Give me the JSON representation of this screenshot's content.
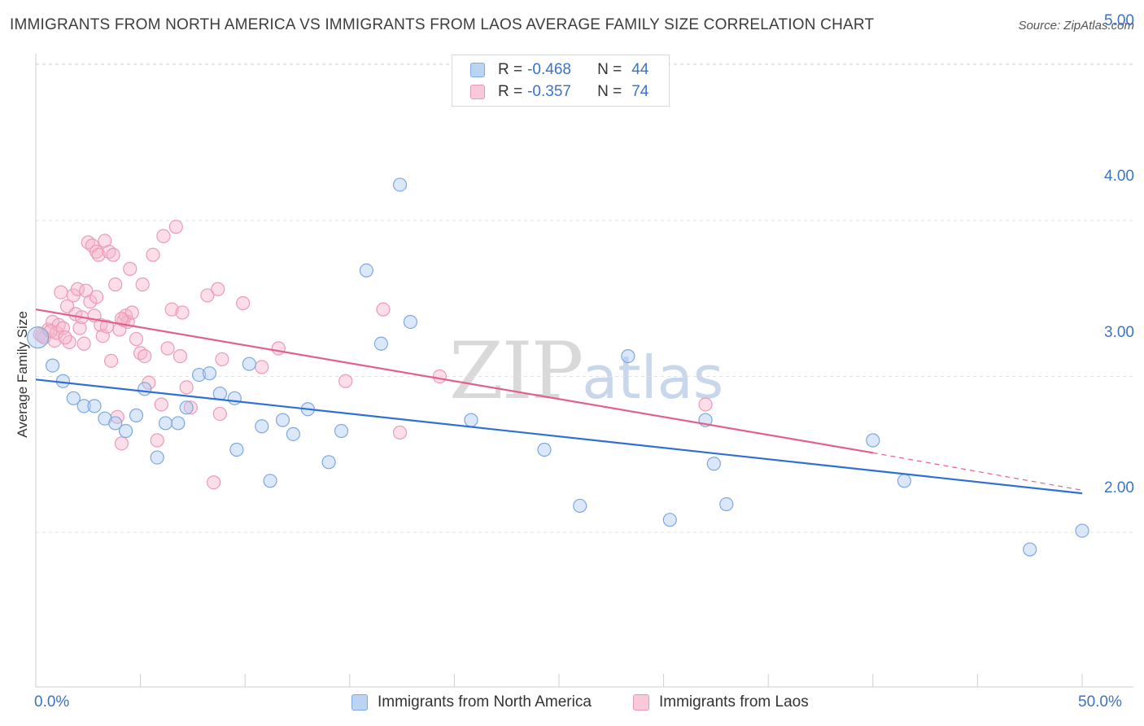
{
  "title": "IMMIGRANTS FROM NORTH AMERICA VS IMMIGRANTS FROM LAOS AVERAGE FAMILY SIZE CORRELATION CHART",
  "source": "Source: ZipAtlas.com",
  "watermark": {
    "zip": "ZIP",
    "atlas": "atlas"
  },
  "legend": {
    "rows": [
      {
        "r_label": "R =",
        "r_value": "-0.468",
        "n_label": "N =",
        "n_value": "44"
      },
      {
        "r_label": "R =",
        "r_value": "-0.357",
        "n_label": "N =",
        "n_value": "74"
      }
    ]
  },
  "chart_data": {
    "type": "scatter",
    "xlabel": "",
    "ylabel": "Average Family Size",
    "x_tick_labels": [
      "0.0%",
      "50.0%"
    ],
    "y_tick_labels": [
      "2.00",
      "3.00",
      "4.00",
      "5.00"
    ],
    "xlim": [
      0,
      50
    ],
    "ylim": [
      1.1,
      5.1
    ],
    "y_ticks": [
      2,
      3,
      4,
      5
    ],
    "grid": true,
    "legend_position": "top-center",
    "colors": {
      "north_america": "#6f9fe0",
      "laos": "#ee8fb0",
      "north_america_line": "#2f6fd6",
      "laos_line": "#e3608e"
    },
    "series": [
      {
        "name": "Immigrants from North America",
        "trend": {
          "x": [
            0,
            50
          ],
          "y": [
            2.98,
            2.25
          ]
        },
        "points": [
          [
            0.1,
            3.25
          ],
          [
            0.8,
            3.07
          ],
          [
            1.3,
            2.97
          ],
          [
            1.8,
            2.86
          ],
          [
            2.3,
            2.81
          ],
          [
            2.8,
            2.81
          ],
          [
            3.3,
            2.73
          ],
          [
            3.8,
            2.7
          ],
          [
            4.3,
            2.65
          ],
          [
            4.8,
            2.75
          ],
          [
            5.2,
            2.92
          ],
          [
            5.8,
            2.48
          ],
          [
            6.2,
            2.7
          ],
          [
            6.8,
            2.7
          ],
          [
            7.2,
            2.8
          ],
          [
            7.8,
            3.01
          ],
          [
            8.3,
            3.02
          ],
          [
            8.8,
            2.89
          ],
          [
            9.5,
            2.86
          ],
          [
            9.6,
            2.53
          ],
          [
            10.2,
            3.08
          ],
          [
            10.8,
            2.68
          ],
          [
            11.2,
            2.33
          ],
          [
            11.8,
            2.72
          ],
          [
            12.3,
            2.63
          ],
          [
            13.0,
            2.79
          ],
          [
            14.0,
            2.45
          ],
          [
            14.6,
            2.65
          ],
          [
            15.8,
            3.68
          ],
          [
            16.5,
            3.21
          ],
          [
            17.4,
            4.23
          ],
          [
            17.9,
            3.35
          ],
          [
            20.8,
            2.72
          ],
          [
            24.3,
            2.53
          ],
          [
            26.0,
            2.17
          ],
          [
            28.3,
            3.13
          ],
          [
            30.3,
            2.08
          ],
          [
            32.0,
            2.72
          ],
          [
            32.4,
            2.44
          ],
          [
            33.0,
            2.18
          ],
          [
            40.0,
            2.59
          ],
          [
            41.5,
            2.33
          ],
          [
            47.5,
            1.89
          ],
          [
            50.0,
            2.01
          ]
        ],
        "point_sizes_note": "one large point at x=0.1"
      },
      {
        "name": "Immigrants from Laos",
        "trend": {
          "x": [
            0,
            40
          ],
          "y": [
            3.43,
            2.51
          ]
        },
        "trend_dashed": {
          "x": [
            40,
            50
          ],
          "y": [
            2.51,
            2.27
          ]
        },
        "points": [
          [
            0.2,
            3.27
          ],
          [
            0.4,
            3.25
          ],
          [
            0.6,
            3.3
          ],
          [
            0.8,
            3.35
          ],
          [
            0.9,
            3.23
          ],
          [
            1.0,
            3.28
          ],
          [
            1.1,
            3.33
          ],
          [
            1.2,
            3.54
          ],
          [
            1.3,
            3.31
          ],
          [
            1.5,
            3.45
          ],
          [
            1.6,
            3.22
          ],
          [
            1.8,
            3.52
          ],
          [
            1.9,
            3.4
          ],
          [
            2.0,
            3.56
          ],
          [
            2.1,
            3.31
          ],
          [
            2.2,
            3.38
          ],
          [
            2.3,
            3.21
          ],
          [
            2.4,
            3.55
          ],
          [
            2.5,
            3.86
          ],
          [
            2.6,
            3.48
          ],
          [
            2.7,
            3.84
          ],
          [
            2.8,
            3.39
          ],
          [
            2.9,
            3.8
          ],
          [
            3.0,
            3.78
          ],
          [
            3.1,
            3.33
          ],
          [
            3.2,
            3.26
          ],
          [
            3.3,
            3.87
          ],
          [
            3.4,
            3.32
          ],
          [
            3.5,
            3.8
          ],
          [
            3.6,
            3.1
          ],
          [
            3.7,
            3.78
          ],
          [
            3.8,
            3.59
          ],
          [
            3.9,
            2.74
          ],
          [
            4.0,
            3.3
          ],
          [
            4.1,
            2.57
          ],
          [
            4.2,
            3.36
          ],
          [
            4.3,
            3.39
          ],
          [
            4.4,
            3.35
          ],
          [
            4.5,
            3.69
          ],
          [
            4.6,
            3.41
          ],
          [
            4.8,
            3.24
          ],
          [
            5.0,
            3.15
          ],
          [
            5.1,
            3.59
          ],
          [
            5.2,
            3.13
          ],
          [
            5.4,
            2.96
          ],
          [
            5.6,
            3.78
          ],
          [
            5.8,
            2.59
          ],
          [
            6.1,
            3.9
          ],
          [
            6.3,
            3.18
          ],
          [
            6.5,
            3.43
          ],
          [
            6.7,
            3.96
          ],
          [
            6.9,
            3.13
          ],
          [
            7.0,
            3.41
          ],
          [
            7.2,
            2.93
          ],
          [
            7.4,
            2.8
          ],
          [
            8.2,
            3.52
          ],
          [
            8.5,
            2.32
          ],
          [
            8.7,
            3.56
          ],
          [
            8.8,
            2.76
          ],
          [
            8.9,
            3.11
          ],
          [
            9.9,
            3.47
          ],
          [
            10.8,
            3.06
          ],
          [
            11.6,
            3.18
          ],
          [
            14.8,
            2.97
          ],
          [
            16.6,
            3.43
          ],
          [
            17.4,
            2.64
          ],
          [
            19.3,
            3.0
          ],
          [
            32.0,
            2.82
          ],
          [
            0.3,
            3.26
          ],
          [
            0.7,
            3.29
          ],
          [
            1.4,
            3.25
          ],
          [
            2.9,
            3.51
          ],
          [
            4.1,
            3.37
          ],
          [
            6.0,
            2.82
          ]
        ]
      }
    ]
  },
  "bottom_legend": [
    {
      "label": "Immigrants from North America"
    },
    {
      "label": "Immigrants from Laos"
    }
  ]
}
